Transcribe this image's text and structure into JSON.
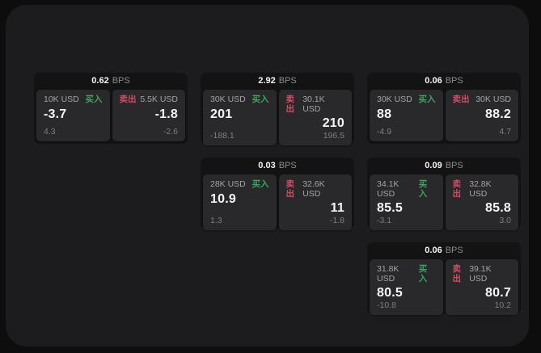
{
  "labels": {
    "buy": "买入",
    "sell": "卖出",
    "bps_unit": "BPS"
  },
  "colors": {
    "buy": "#3ba55d",
    "sell": "#d14d62",
    "page_bg": "#0d0d0d",
    "panel_bg": "#1c1c1e",
    "card_bg": "#131314",
    "cell_bg": "#29292b",
    "value_text": "#f5f5f5",
    "label_text": "#a3a3a3",
    "muted_text": "#7e7e7e",
    "unit_text": "#8b8b8b"
  },
  "cards": [
    {
      "bps": "0.62",
      "buy": {
        "amount": "10K USD",
        "price": "-3.7",
        "delta": "4.3"
      },
      "sell": {
        "amount": "5.5K USD",
        "price": "-1.8",
        "delta": "-2.6"
      }
    },
    {
      "bps": "2.92",
      "buy": {
        "amount": "30K USD",
        "price": "201",
        "delta": "-188.1"
      },
      "sell": {
        "amount": "30.1K USD",
        "price": "210",
        "delta": "196.5"
      }
    },
    {
      "bps": "0.06",
      "buy": {
        "amount": "30K USD",
        "price": "88",
        "delta": "-4.9"
      },
      "sell": {
        "amount": "30K USD",
        "price": "88.2",
        "delta": "4.7"
      }
    },
    {
      "bps": "0.03",
      "buy": {
        "amount": "28K USD",
        "price": "10.9",
        "delta": "1.3"
      },
      "sell": {
        "amount": "32.6K USD",
        "price": "11",
        "delta": "-1.8"
      }
    },
    {
      "bps": "0.09",
      "buy": {
        "amount": "34.1K USD",
        "price": "85.5",
        "delta": "-3.1"
      },
      "sell": {
        "amount": "32.8K USD",
        "price": "85.8",
        "delta": "3.0"
      }
    },
    {
      "bps": "0.06",
      "buy": {
        "amount": "31.8K USD",
        "price": "80.5",
        "delta": "-10.8"
      },
      "sell": {
        "amount": "39.1K USD",
        "price": "80.7",
        "delta": "10.2"
      }
    }
  ]
}
